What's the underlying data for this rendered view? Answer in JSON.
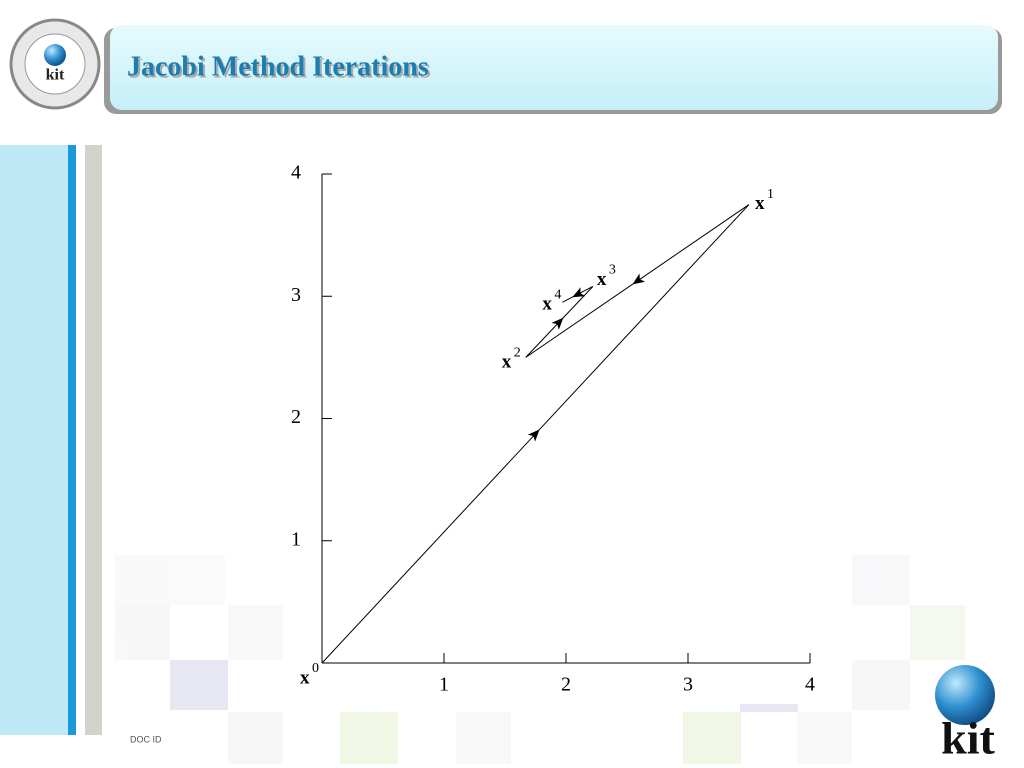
{
  "header": {
    "title": "Jacobi Method Iterations"
  },
  "footer": {
    "doc_id": "DOC ID"
  },
  "logo": {
    "text": "kit"
  },
  "chart_data": {
    "type": "line",
    "x": [
      0,
      3.5,
      1.67,
      2.22,
      1.97
    ],
    "y": [
      0,
      3.75,
      2.5,
      3.08,
      2.95
    ],
    "point_labels": [
      {
        "base": "x",
        "sup": "0"
      },
      {
        "base": "x",
        "sup": "1"
      },
      {
        "base": "x",
        "sup": "2"
      },
      {
        "base": "x",
        "sup": "3"
      },
      {
        "base": "x",
        "sup": "4"
      }
    ],
    "color": "#000000",
    "xlim": [
      0,
      4
    ],
    "ylim": [
      0,
      4
    ],
    "xticks": [
      1,
      2,
      3,
      4
    ],
    "yticks": [
      1,
      2,
      3,
      4
    ]
  }
}
